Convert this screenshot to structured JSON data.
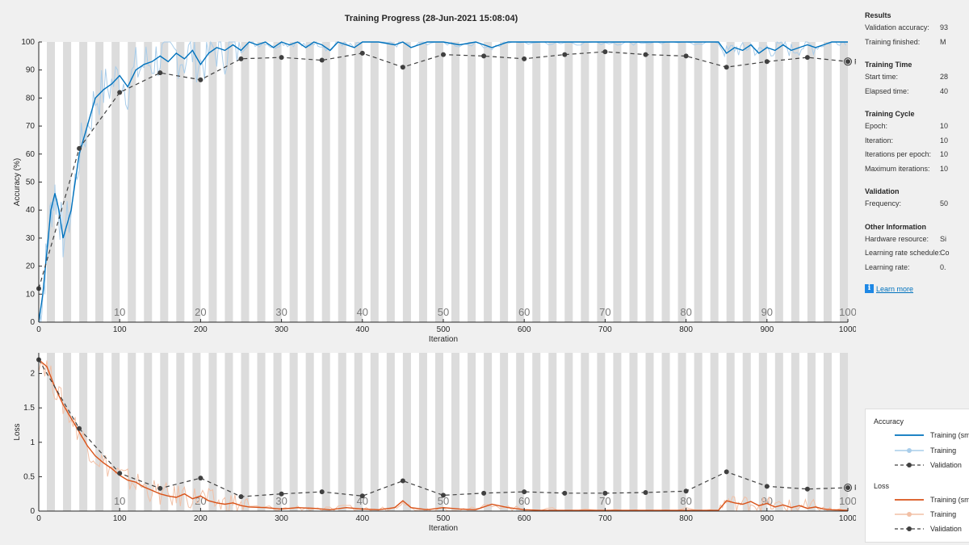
{
  "window": {
    "title": "Training Progress (28-Jun-2021 15:08:04)"
  },
  "colors": {
    "accuracy_smoothed": "#0072bd",
    "accuracy_raw": "#a9cdea",
    "loss_smoothed": "#d95319",
    "loss_raw": "#f2c0a6",
    "validation": "#404040",
    "epoch_band": "#dcdcdc"
  },
  "info_panel": {
    "sections": [
      {
        "head": "Results",
        "rows": [
          {
            "key": "Validation accuracy:",
            "value": "93"
          },
          {
            "key": "Training finished:",
            "value": "M"
          }
        ]
      },
      {
        "head": "Training Time",
        "rows": [
          {
            "key": "Start time:",
            "value": "28"
          },
          {
            "key": "Elapsed time:",
            "value": "40"
          }
        ]
      },
      {
        "head": "Training Cycle",
        "rows": [
          {
            "key": "Epoch:",
            "value": "10"
          },
          {
            "key": "Iteration:",
            "value": "10"
          },
          {
            "key": "Iterations per epoch:",
            "value": "10"
          },
          {
            "key": "Maximum iterations:",
            "value": "10"
          }
        ]
      },
      {
        "head": "Validation",
        "rows": [
          {
            "key": "Frequency:",
            "value": "50"
          }
        ]
      },
      {
        "head": "Other Information",
        "rows": [
          {
            "key": "Hardware resource:",
            "value": "Si"
          },
          {
            "key": "Learning rate schedule:",
            "value": "Co"
          },
          {
            "key": "Learning rate:",
            "value": "0."
          }
        ]
      }
    ],
    "learn_more": "Learn more",
    "info_icon": "i"
  },
  "legend": {
    "accuracy_head": "Accuracy",
    "accuracy_items": [
      "Training (sm",
      "Training",
      "Validation"
    ],
    "loss_head": "Loss",
    "loss_items": [
      "Training (sm",
      "Training",
      "Validation"
    ]
  },
  "chart_data": [
    {
      "type": "line",
      "title": "Training Progress (28-Jun-2021 15:08:04)",
      "xlabel": "Iteration",
      "ylabel": "Accuracy (%)",
      "xlim": [
        0,
        1000
      ],
      "ylim": [
        0,
        100
      ],
      "xticks": [
        0,
        100,
        200,
        300,
        400,
        500,
        600,
        700,
        800,
        900,
        1000
      ],
      "yticks": [
        0,
        10,
        20,
        30,
        40,
        50,
        60,
        70,
        80,
        90,
        100
      ],
      "epoch_labels": [
        "10",
        "20",
        "30",
        "40",
        "50",
        "60",
        "70",
        "80",
        "90",
        "100"
      ],
      "final_label": "Final",
      "series": [
        {
          "name": "Training (smoothed)",
          "x": [
            0,
            5,
            10,
            15,
            20,
            25,
            30,
            40,
            50,
            60,
            70,
            80,
            90,
            100,
            110,
            120,
            130,
            140,
            150,
            160,
            170,
            180,
            190,
            200,
            210,
            220,
            230,
            240,
            250,
            260,
            270,
            280,
            290,
            300,
            310,
            320,
            330,
            340,
            350,
            360,
            370,
            380,
            390,
            400,
            420,
            440,
            450,
            460,
            480,
            500,
            520,
            540,
            560,
            580,
            600,
            620,
            640,
            660,
            680,
            700,
            720,
            740,
            760,
            780,
            800,
            820,
            840,
            850,
            860,
            870,
            880,
            890,
            900,
            910,
            920,
            930,
            940,
            950,
            960,
            970,
            980,
            990,
            1000
          ],
          "y": [
            0,
            10,
            25,
            40,
            46,
            40,
            30,
            40,
            60,
            70,
            80,
            83,
            85,
            88,
            84,
            90,
            92,
            93,
            95,
            93,
            96,
            94,
            97,
            92,
            96,
            98,
            97,
            99,
            97,
            100,
            99,
            100,
            98,
            100,
            99,
            100,
            98,
            100,
            99,
            97,
            100,
            99,
            98,
            100,
            100,
            99,
            100,
            98,
            100,
            100,
            99,
            100,
            98,
            100,
            100,
            100,
            100,
            100,
            100,
            100,
            100,
            100,
            100,
            100,
            100,
            100,
            100,
            96,
            98,
            97,
            99,
            96,
            98,
            97,
            99,
            97,
            98,
            99,
            98,
            99,
            100,
            100,
            100
          ]
        },
        {
          "name": "Validation",
          "x": [
            0,
            50,
            100,
            150,
            200,
            250,
            300,
            350,
            400,
            450,
            500,
            550,
            600,
            650,
            700,
            750,
            800,
            850,
            900,
            950,
            1000
          ],
          "y": [
            12,
            62,
            82,
            89,
            86.5,
            94,
            94.5,
            93.5,
            96,
            91,
            95.5,
            95,
            94,
            95.5,
            96.5,
            95.5,
            95,
            91,
            93,
            94.5,
            93
          ]
        }
      ]
    },
    {
      "type": "line",
      "xlabel": "Iteration",
      "ylabel": "Loss",
      "xlim": [
        0,
        1000
      ],
      "ylim": [
        0,
        2.3
      ],
      "xticks": [
        0,
        100,
        200,
        300,
        400,
        500,
        600,
        700,
        800,
        900,
        1000
      ],
      "yticks": [
        0,
        0.5,
        1,
        1.5,
        2
      ],
      "ytick_labels": [
        "0",
        "0.5",
        "1",
        "1.5",
        "2"
      ],
      "epoch_labels": [
        "10",
        "20",
        "30",
        "40",
        "50",
        "60",
        "70",
        "80",
        "90",
        "100"
      ],
      "final_label": "Final",
      "series": [
        {
          "name": "Training (smoothed)",
          "x": [
            0,
            10,
            20,
            30,
            40,
            50,
            60,
            70,
            80,
            90,
            100,
            110,
            120,
            130,
            140,
            150,
            160,
            170,
            180,
            190,
            200,
            210,
            220,
            230,
            240,
            250,
            260,
            280,
            300,
            320,
            340,
            360,
            380,
            400,
            420,
            440,
            450,
            460,
            480,
            500,
            520,
            540,
            560,
            580,
            600,
            620,
            650,
            700,
            750,
            800,
            840,
            850,
            860,
            870,
            880,
            890,
            900,
            910,
            920,
            930,
            940,
            950,
            960,
            970,
            980,
            1000
          ],
          "y": [
            2.2,
            2.1,
            1.8,
            1.55,
            1.35,
            1.15,
            0.95,
            0.8,
            0.7,
            0.62,
            0.52,
            0.45,
            0.42,
            0.35,
            0.3,
            0.25,
            0.22,
            0.2,
            0.25,
            0.18,
            0.22,
            0.15,
            0.12,
            0.1,
            0.12,
            0.08,
            0.06,
            0.05,
            0.03,
            0.05,
            0.04,
            0.02,
            0.05,
            0.03,
            0.02,
            0.05,
            0.15,
            0.05,
            0.02,
            0.05,
            0.03,
            0.02,
            0.1,
            0.05,
            0.02,
            0.01,
            0.01,
            0.01,
            0.01,
            0.01,
            0.01,
            0.15,
            0.12,
            0.1,
            0.14,
            0.08,
            0.11,
            0.06,
            0.09,
            0.05,
            0.08,
            0.04,
            0.06,
            0.03,
            0.02,
            0.01
          ]
        },
        {
          "name": "Validation",
          "x": [
            0,
            50,
            100,
            150,
            200,
            250,
            300,
            350,
            400,
            450,
            500,
            550,
            600,
            650,
            700,
            750,
            800,
            850,
            900,
            950,
            1000
          ],
          "y": [
            2.2,
            1.2,
            0.55,
            0.33,
            0.48,
            0.21,
            0.25,
            0.28,
            0.22,
            0.44,
            0.23,
            0.26,
            0.28,
            0.26,
            0.26,
            0.27,
            0.29,
            0.57,
            0.36,
            0.32,
            0.34
          ]
        }
      ]
    }
  ]
}
